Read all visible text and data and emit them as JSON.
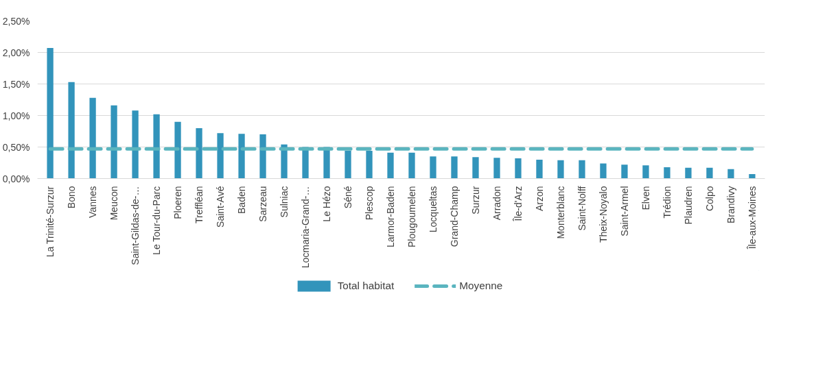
{
  "chart_data": {
    "type": "bar",
    "categories": [
      "La Trinité-Surzur",
      "Bono",
      "Vannes",
      "Meucon",
      "Saint-Gildas-de-…",
      "Le Tour-du-Parc",
      "Ploeren",
      "Treffléan",
      "Saint-Avé",
      "Baden",
      "Sarzeau",
      "Sulniac",
      "Locmaria-Grand-…",
      "Le Hézo",
      "Séné",
      "Plescop",
      "Larmor-Baden",
      "Plougoumelen",
      "Locqueltas",
      "Grand-Champ",
      "Surzur",
      "Arradon",
      "Île-d'Arz",
      "Arzon",
      "Monterblanc",
      "Saint-Nolff",
      "Theix-Noyalo",
      "Saint-Armel",
      "Elven",
      "Trédion",
      "Plaudren",
      "Colpo",
      "Brandivy",
      "Île-aux-Moines"
    ],
    "series": [
      {
        "name": "Total habitat",
        "color": "#3294bb",
        "values": [
          2.07,
          1.53,
          1.28,
          1.16,
          1.08,
          1.02,
          0.9,
          0.8,
          0.72,
          0.71,
          0.7,
          0.54,
          0.5,
          0.5,
          0.44,
          0.44,
          0.41,
          0.41,
          0.35,
          0.35,
          0.34,
          0.33,
          0.32,
          0.3,
          0.29,
          0.29,
          0.24,
          0.22,
          0.21,
          0.18,
          0.17,
          0.17,
          0.15,
          0.07
        ]
      },
      {
        "name": "Moyenne",
        "type": "line",
        "line_style": "dashed",
        "color": "#5ab5bf",
        "values": [
          0.47,
          0.47,
          0.47,
          0.47,
          0.47,
          0.47,
          0.47,
          0.47,
          0.47,
          0.47,
          0.47,
          0.47,
          0.47,
          0.47,
          0.47,
          0.47,
          0.47,
          0.47,
          0.47,
          0.47,
          0.47,
          0.47,
          0.47,
          0.47,
          0.47,
          0.47,
          0.47,
          0.47,
          0.47,
          0.47,
          0.47,
          0.47,
          0.47,
          0.47
        ]
      }
    ],
    "ylim": [
      0,
      2.5
    ],
    "yticks": [
      {
        "value": 0,
        "label": "0,00%"
      },
      {
        "value": 0.5,
        "label": "0,50%"
      },
      {
        "value": 1,
        "label": "1,00%"
      },
      {
        "value": 1.5,
        "label": "1,50%"
      },
      {
        "value": 2,
        "label": "2,00%"
      },
      {
        "value": 2.5,
        "label": "2,50%"
      }
    ],
    "grid": "y",
    "legend": "bottom"
  }
}
